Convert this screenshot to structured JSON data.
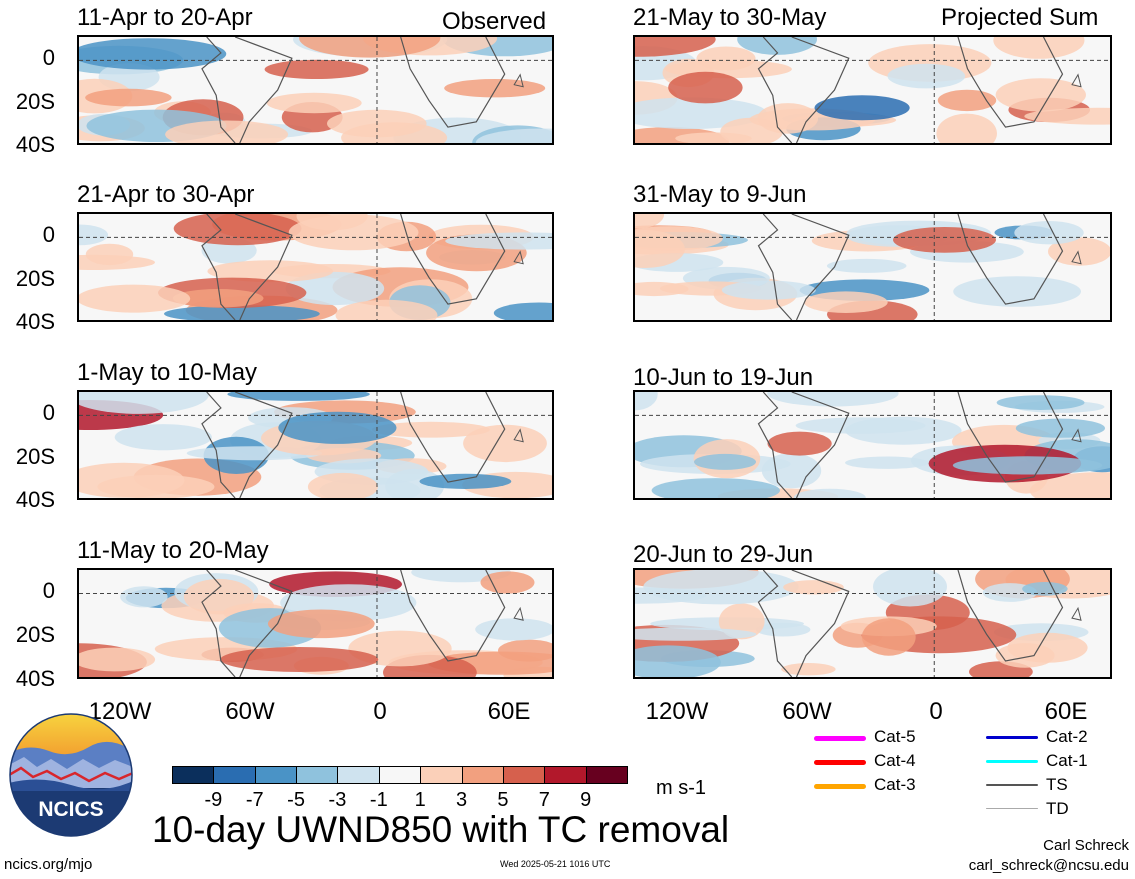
{
  "header": {
    "observed_label": "Observed",
    "projected_label": "Projected Sum"
  },
  "panels": [
    {
      "title": "11-Apr to 20-Apr",
      "period": "observed",
      "col": 0,
      "row": 0
    },
    {
      "title": "21-Apr to 30-Apr",
      "period": "observed",
      "col": 0,
      "row": 1
    },
    {
      "title": "1-May to 10-May",
      "period": "observed",
      "col": 0,
      "row": 2
    },
    {
      "title": "11-May to 20-May",
      "period": "observed",
      "col": 0,
      "row": 3
    },
    {
      "title": "21-May to 30-May",
      "period": "projected",
      "col": 1,
      "row": 0
    },
    {
      "title": "31-May to 9-Jun",
      "period": "projected",
      "col": 1,
      "row": 1
    },
    {
      "title": "10-Jun to 19-Jun",
      "period": "projected",
      "col": 1,
      "row": 2
    },
    {
      "title": "20-Jun to 29-Jun",
      "period": "projected",
      "col": 1,
      "row": 3
    }
  ],
  "axes": {
    "lat_labels": [
      "0",
      "20S",
      "40S"
    ],
    "lon_labels": [
      "120W",
      "60W",
      "0",
      "60E"
    ]
  },
  "colorbar": {
    "labels": [
      "-9",
      "-7",
      "-5",
      "-3",
      "-1",
      "1",
      "3",
      "5",
      "7",
      "9"
    ],
    "units": "m s-1",
    "colors": [
      "#0b2f5c",
      "#2a6db1",
      "#4a93c6",
      "#8fc2dd",
      "#cfe3ef",
      "#f7f7f7",
      "#fbd0b9",
      "#f2a07f",
      "#d6604d",
      "#b2182b",
      "#67001f"
    ]
  },
  "legend": [
    {
      "label": "Cat-5",
      "color": "#ff00ff",
      "width": 5
    },
    {
      "label": "Cat-4",
      "color": "#ff0000",
      "width": 5
    },
    {
      "label": "Cat-3",
      "color": "#ffa500",
      "width": 5
    },
    {
      "label": "Cat-2",
      "color": "#0000cd",
      "width": 3
    },
    {
      "label": "Cat-1",
      "color": "#00ffff",
      "width": 3
    },
    {
      "label": "TS",
      "color": "#555555",
      "width": 2
    },
    {
      "label": "TD",
      "color": "#aaaaaa",
      "width": 1
    }
  ],
  "logo": {
    "text": "NCICS"
  },
  "footer": {
    "title": "10-day UWND850 with TC removal",
    "url": "ncics.org/mjo",
    "timestamp": "Wed 2025-05-21 1016 UTC",
    "author": "Carl Schreck",
    "email": "carl_schreck@ncsu.edu"
  }
}
